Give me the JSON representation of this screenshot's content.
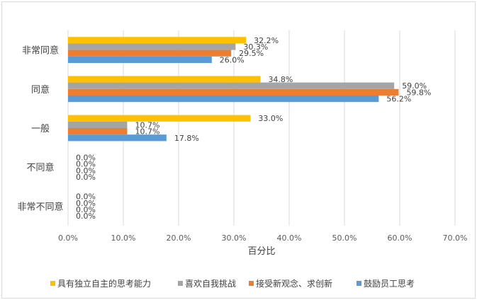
{
  "chart_data": {
    "type": "bar",
    "orientation": "horizontal",
    "title": "",
    "xlabel": "百分比",
    "ylabel": "",
    "categories": [
      "非常同意",
      "同意",
      "一般",
      "不同意",
      "非常不同意"
    ],
    "xlim": [
      0,
      70
    ],
    "ticks": [
      "0.0%",
      "10.0%",
      "20.0%",
      "30.0%",
      "40.0%",
      "50.0%",
      "60.0%",
      "70.0%"
    ],
    "grid": true,
    "legend_position": "bottom",
    "series": [
      {
        "name": "具有独立自主的思考能力",
        "color": "#ffc000",
        "values": [
          32.2,
          34.8,
          33.0,
          0.0,
          0.0
        ],
        "labels": [
          "32.2%",
          "34.8%",
          "33.0%",
          "0.0%",
          "0.0%"
        ]
      },
      {
        "name": "喜欢自我挑战",
        "color": "#a5a5a5",
        "values": [
          30.3,
          59.0,
          10.7,
          0.0,
          0.0
        ],
        "labels": [
          "30.3%",
          "59.0%",
          "10.7%",
          "0.0%",
          "0.0%"
        ]
      },
      {
        "name": "接受新观念、求创新",
        "color": "#ed7d31",
        "values": [
          29.5,
          59.8,
          10.7,
          0.0,
          0.0
        ],
        "labels": [
          "29.5%",
          "59.8%",
          "10.7%",
          "0.0%",
          "0.0%"
        ]
      },
      {
        "name": "鼓励员工思考",
        "color": "#5b9bd5",
        "values": [
          26.0,
          56.2,
          17.8,
          0.0,
          0.0
        ],
        "labels": [
          "26.0%",
          "56.2%",
          "17.8%",
          "0.0%",
          "0.0%"
        ]
      }
    ]
  }
}
